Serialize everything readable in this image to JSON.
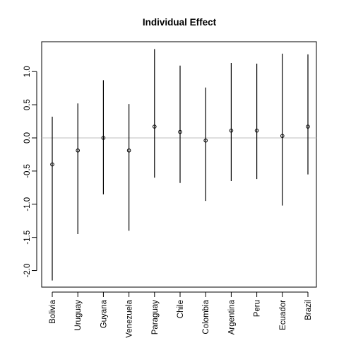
{
  "chart_data": {
    "type": "scatter",
    "title": "Individual Effect",
    "xlabel": "",
    "ylabel": "",
    "categories": [
      "Bolivia",
      "Uruguay",
      "Guyana",
      "Venezuela",
      "Paraguay",
      "Chile",
      "Colombia",
      "Argentina",
      "Peru",
      "Ecuador",
      "Brazil"
    ],
    "series": [
      {
        "estimate": [
          -0.4,
          -0.19,
          0.0,
          -0.19,
          0.17,
          0.09,
          -0.04,
          0.11,
          0.11,
          0.03,
          0.17
        ],
        "lower": [
          -2.15,
          -1.45,
          -0.85,
          -1.4,
          -0.6,
          -0.68,
          -0.95,
          -0.65,
          -0.62,
          -1.02,
          -0.55
        ],
        "upper": [
          0.32,
          0.52,
          0.87,
          0.51,
          1.34,
          1.09,
          0.76,
          1.13,
          1.12,
          1.27,
          1.26
        ]
      }
    ],
    "yticks": [
      -2.0,
      -1.5,
      -1.0,
      -0.5,
      0.0,
      0.5,
      1.0
    ],
    "ytick_labels": [
      "-2.0",
      "-1.5",
      "-1.0",
      "-0.5",
      "0.0",
      "0.5",
      "1.0"
    ],
    "ylim": [
      -2.25,
      1.45
    ],
    "reference_line": 0.0,
    "reference_line_color": "#bebebe",
    "point_style": "open-circle",
    "grid": false,
    "legend": "none"
  }
}
